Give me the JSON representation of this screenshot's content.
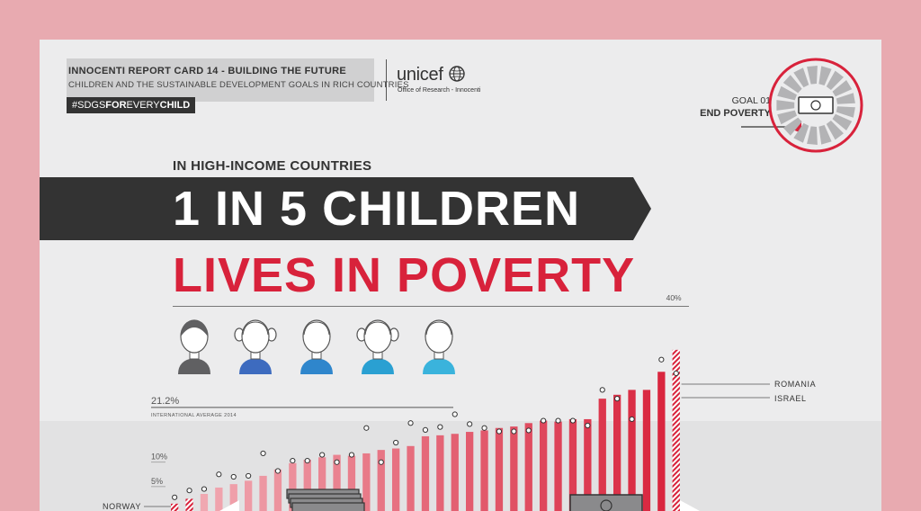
{
  "header": {
    "report_title": "INNOCENTI REPORT CARD 14 - BUILDING THE FUTURE",
    "report_subtitle": "CHILDREN AND THE SUSTAINABLE DEVELOPMENT GOALS IN RICH COUNTRIES",
    "hashtag_parts": [
      "#SDGS",
      "FOR",
      "EVERY",
      "CHILD"
    ],
    "logo_text": "unicef",
    "logo_sub": "Office of Research - Innocenti",
    "goal_number": "GOAL 01",
    "goal_name": "END POVERTY"
  },
  "headline": {
    "kicker": "IN HIGH-INCOME COUNTRIES",
    "line1": "1 IN 5 CHILDREN",
    "line2": "LIVES IN POVERTY"
  },
  "colors": {
    "accent_red": "#d8223b",
    "dark": "#333333",
    "child_colors": [
      "#606062",
      "#3d6bbf",
      "#2f86cc",
      "#2aa0d2",
      "#3ab3dc"
    ]
  },
  "figures": [
    {
      "name": "boy-icon"
    },
    {
      "name": "girl-icon"
    },
    {
      "name": "boy-icon"
    },
    {
      "name": "girl-icon"
    },
    {
      "name": "boy-icon"
    }
  ],
  "chart_data": {
    "type": "bar",
    "ylim": [
      0,
      42
    ],
    "y_ticks": [
      {
        "value": 5,
        "label": "5%"
      },
      {
        "value": 10,
        "label": "10%"
      }
    ],
    "top_label": "40%",
    "average": {
      "value": 21.2,
      "label": "21.2%",
      "caption": "INTERNATIONAL AVERAGE 2014"
    },
    "bars": [
      1.5,
      2.5,
      3.5,
      4.8,
      5.5,
      6.2,
      7.2,
      8.5,
      9.8,
      10.5,
      11.0,
      11.5,
      11.3,
      11.8,
      12.5,
      12.8,
      13.3,
      15.3,
      15.5,
      15.8,
      16.2,
      16.5,
      17.0,
      17.3,
      18.0,
      18.5,
      18.3,
      18.8,
      18.8,
      23.0,
      23.8,
      24.8,
      24.8,
      28.5,
      33.0
    ],
    "hatched": [
      0,
      1,
      34
    ],
    "dots": [
      2.8,
      4.2,
      4.5,
      7.5,
      7.0,
      7.2,
      11.8,
      8.2,
      10.3,
      10.3,
      11.5,
      10.0,
      11.5,
      17.0,
      10.0,
      14.0,
      18.0,
      16.6,
      17.2,
      19.8,
      17.8,
      17.0,
      16.3,
      16.3,
      16.5,
      18.5,
      18.5,
      18.5,
      17.5,
      24.8,
      23.0,
      18.8,
      null,
      31.0,
      28.2
    ],
    "callouts": [
      {
        "label": "NORWAY"
      },
      {
        "label": "ROMANIA"
      },
      {
        "label": "ISRAEL"
      }
    ]
  }
}
